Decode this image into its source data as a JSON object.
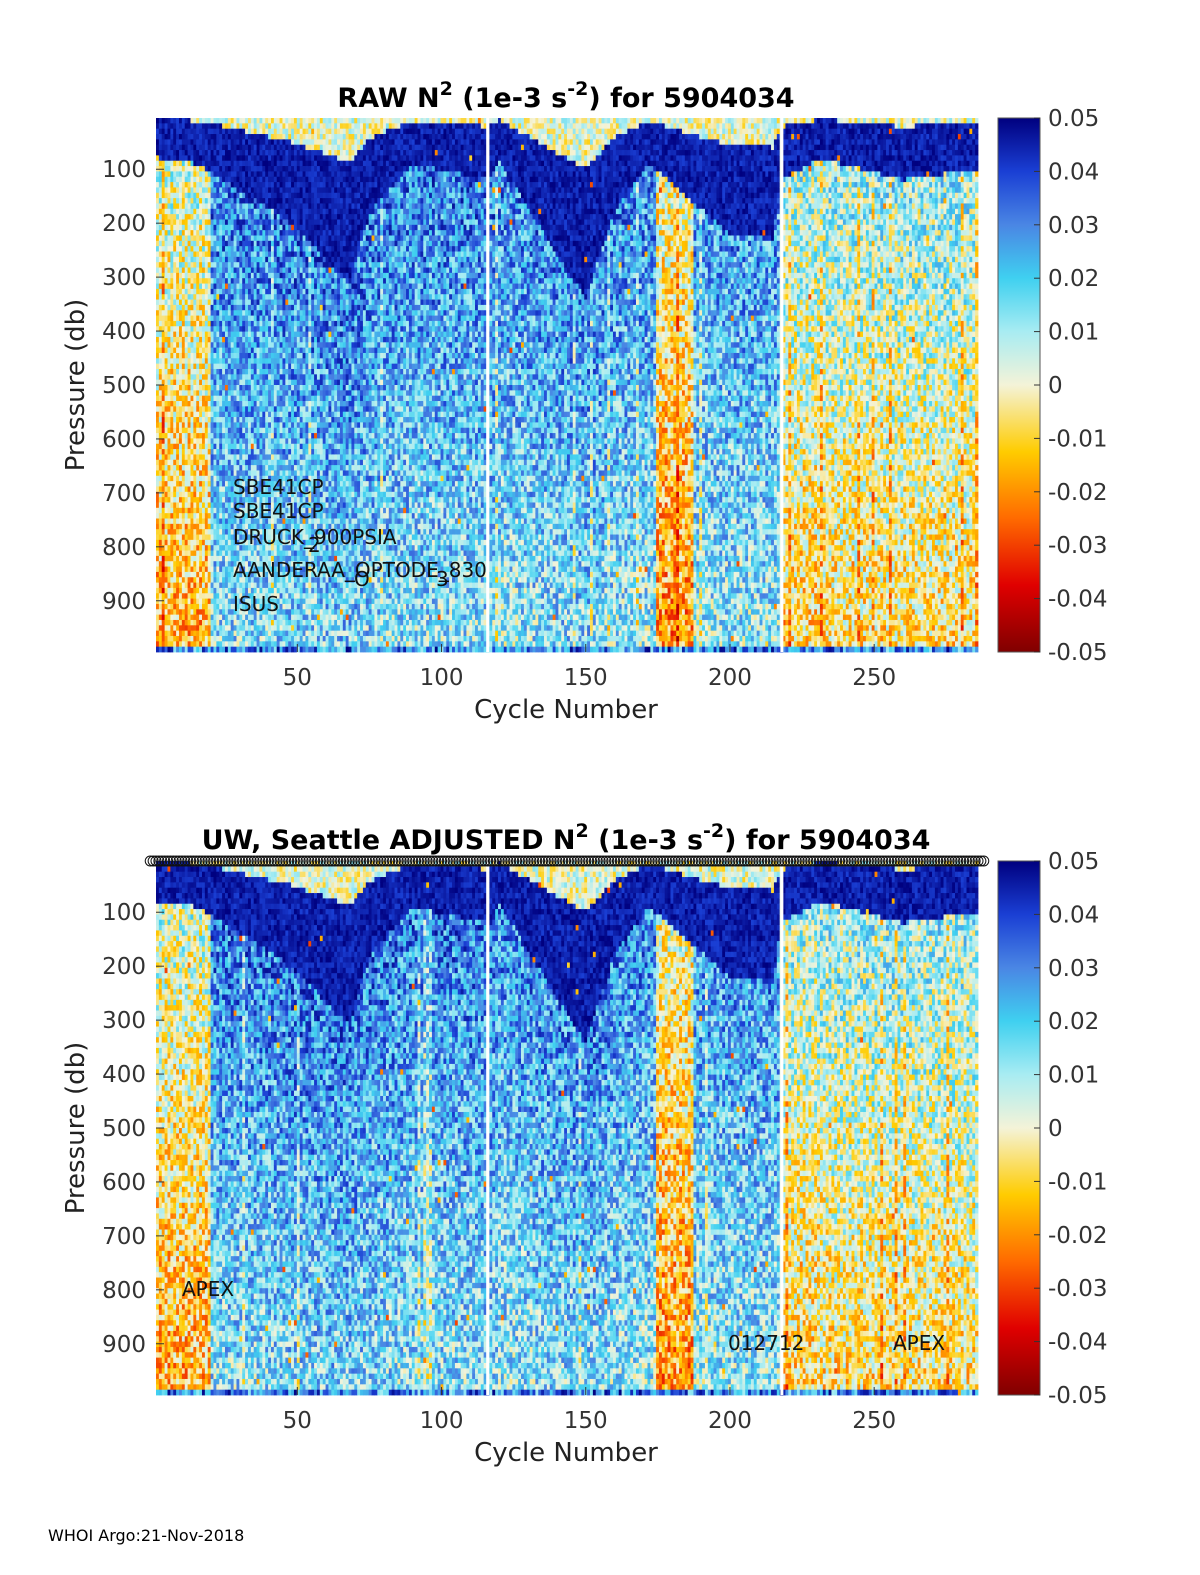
{
  "footer": "WHOI Argo:21-Nov-2018",
  "chart_data": [
    {
      "type": "heatmap",
      "title_parts": [
        "RAW N",
        "2",
        " (1e-3 s",
        "-2",
        ") for 5904034"
      ],
      "xlabel": "Cycle Number",
      "ylabel": "Pressure (db)",
      "xlim": [
        1,
        286
      ],
      "ylim": [
        5,
        995
      ],
      "y_reversed": true,
      "xticks": [
        50,
        100,
        150,
        200,
        250
      ],
      "yticks": [
        100,
        200,
        300,
        400,
        500,
        600,
        700,
        800,
        900
      ],
      "colorbar": {
        "min": -0.05,
        "max": 0.05,
        "ticks": [
          "0.05",
          "0.04",
          "0.03",
          "0.02",
          "0.01",
          "0",
          "-0.01",
          "-0.02",
          "-0.03",
          "-0.04",
          "-0.05"
        ]
      },
      "annotations": [
        "SBE41CP",
        "SBE41CP",
        "DRUCK_900PSIA",
        "2",
        "AANDERAA_OPTODE_830",
        "O",
        "3",
        "ISUS"
      ],
      "gap_cycles": [
        116,
        218
      ]
    },
    {
      "type": "heatmap",
      "title_parts": [
        "UW, Seattle  ADJUSTED N",
        "2",
        " (1e-3 s",
        "-2",
        ") for 5904034"
      ],
      "xlabel": "Cycle Number",
      "ylabel": "Pressure (db)",
      "xlim": [
        1,
        286
      ],
      "ylim": [
        5,
        995
      ],
      "y_reversed": true,
      "xticks": [
        50,
        100,
        150,
        200,
        250
      ],
      "yticks": [
        100,
        200,
        300,
        400,
        500,
        600,
        700,
        800,
        900
      ],
      "colorbar": {
        "min": -0.05,
        "max": 0.05,
        "ticks": [
          "0.05",
          "0.04",
          "0.03",
          "0.02",
          "0.01",
          "0",
          "-0.01",
          "-0.02",
          "-0.03",
          "-0.04",
          "-0.05"
        ]
      },
      "annotations": [
        "APEX",
        "012712",
        "APEX"
      ],
      "gap_cycles": [
        116,
        218
      ],
      "qc_markers_row": true
    }
  ]
}
